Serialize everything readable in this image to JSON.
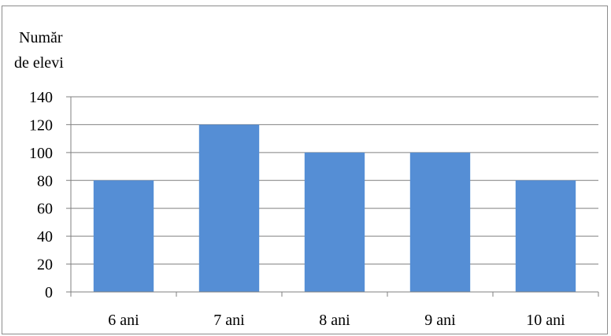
{
  "chart_data": {
    "type": "bar",
    "title": "",
    "ylabel_lines": [
      "Număr",
      "de elevi"
    ],
    "xlabel": "",
    "categories": [
      "6 ani",
      "7 ani",
      "8 ani",
      "9 ani",
      "10 ani"
    ],
    "values": [
      80,
      120,
      100,
      100,
      80
    ],
    "ylim": [
      0,
      140
    ],
    "yticks": [
      0,
      20,
      40,
      60,
      80,
      100,
      120,
      140
    ],
    "grid": true,
    "bar_color": "#558ED5",
    "grid_color": "#808080"
  }
}
